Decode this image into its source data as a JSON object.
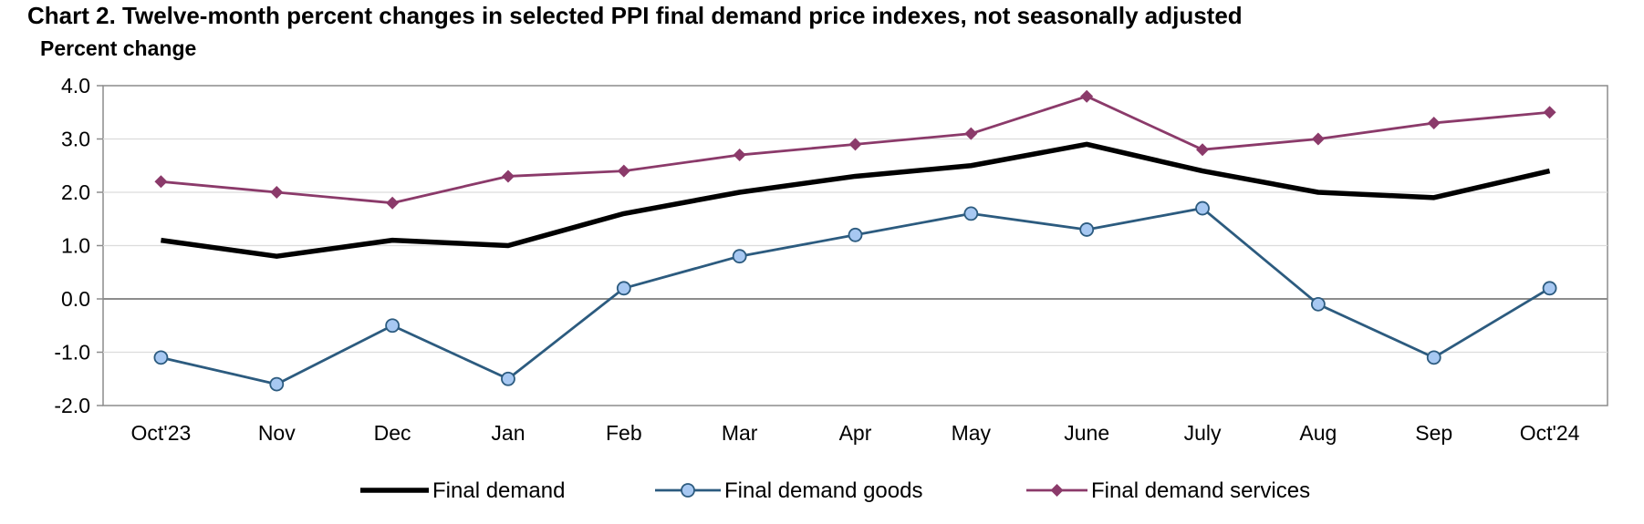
{
  "chart_data": {
    "type": "line",
    "title": "Chart 2. Twelve-month percent changes in selected PPI final demand price indexes, not seasonally adjusted",
    "ylabel": "Percent change",
    "xlabel": "",
    "categories": [
      "Oct'23",
      "Nov",
      "Dec",
      "Jan",
      "Feb",
      "Mar",
      "Apr",
      "May",
      "June",
      "July",
      "Aug",
      "Sep",
      "Oct'24"
    ],
    "ylim": [
      -2.0,
      4.0
    ],
    "yticks": [
      "4.0",
      "3.0",
      "2.0",
      "1.0",
      "0.0",
      "-1.0",
      "-2.0"
    ],
    "ytick_values": [
      4,
      3,
      2,
      1,
      0,
      -1,
      -2
    ],
    "grid": true,
    "legend_position": "bottom",
    "series": [
      {
        "name": "Final demand",
        "values": [
          1.1,
          0.8,
          1.1,
          1.0,
          1.6,
          2.0,
          2.3,
          2.5,
          2.9,
          2.4,
          2.0,
          1.9,
          2.4
        ],
        "color": "#000000",
        "marker": "none"
      },
      {
        "name": "Final demand goods",
        "values": [
          -1.1,
          -1.6,
          -0.5,
          -1.5,
          0.2,
          0.8,
          1.2,
          1.6,
          1.3,
          1.7,
          -0.1,
          -1.1,
          0.2
        ],
        "color": "#2c5b7f",
        "marker": "circle",
        "marker_fill": "#a7c8f2"
      },
      {
        "name": "Final demand services",
        "values": [
          2.2,
          2.0,
          1.8,
          2.3,
          2.4,
          2.7,
          2.9,
          3.1,
          3.8,
          2.8,
          3.0,
          3.3,
          3.5
        ],
        "color": "#8b3a6a",
        "marker": "diamond"
      }
    ]
  }
}
